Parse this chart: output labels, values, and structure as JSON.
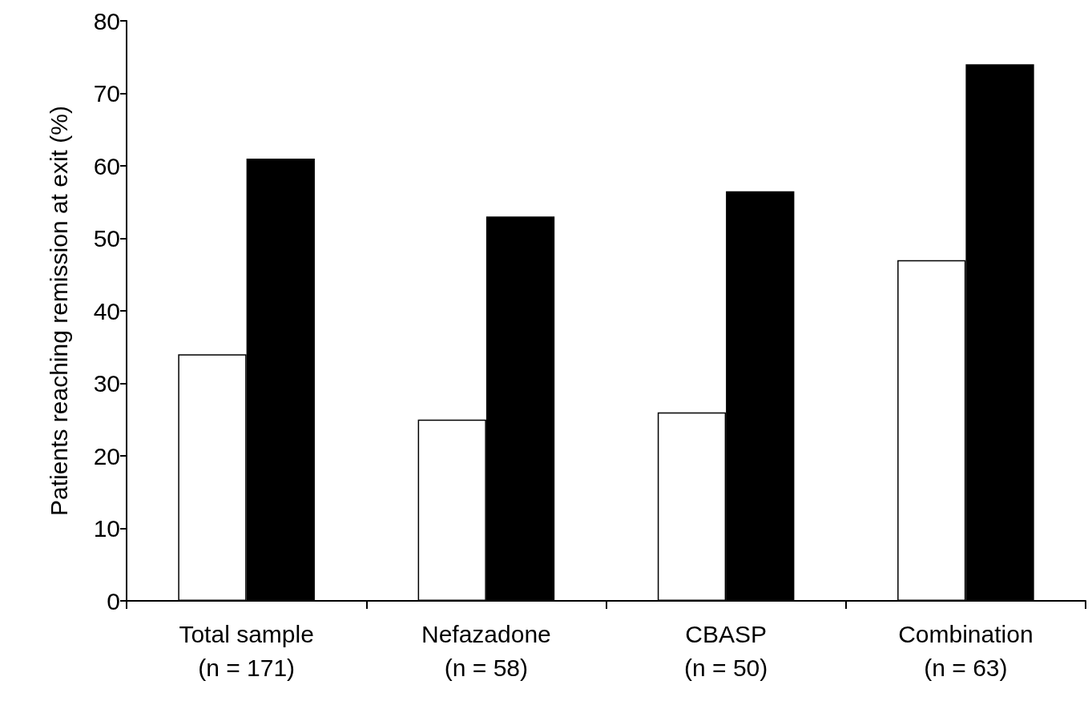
{
  "chart_data": {
    "type": "bar",
    "ylabel": "Patients reaching remission at exit (%)",
    "categories": [
      "Total sample\n(n = 171)",
      "Nefazadone\n(n = 58)",
      "CBASP\n(n = 50)",
      "Combination\n(n = 63)"
    ],
    "series": [
      {
        "color": "#ffffff",
        "values": [
          34,
          25,
          26,
          47
        ]
      },
      {
        "color": "#000000",
        "values": [
          61,
          53,
          56.5,
          74
        ]
      }
    ],
    "ylim": [
      0,
      80
    ],
    "yticks": [
      0,
      10,
      20,
      30,
      40,
      50,
      60,
      70,
      80
    ],
    "grid": false
  }
}
